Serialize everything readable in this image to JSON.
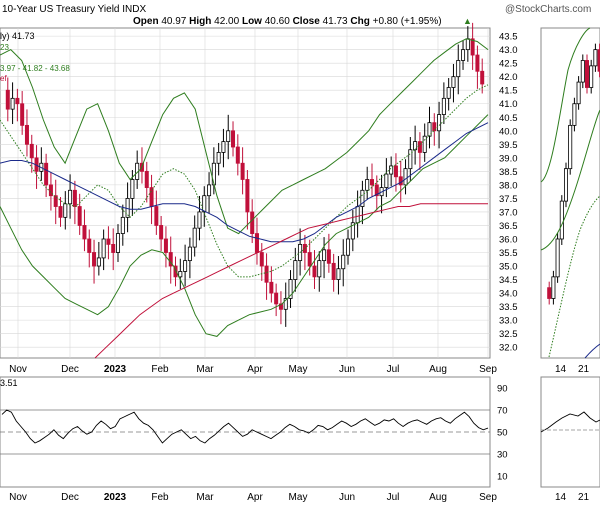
{
  "header": {
    "title": "10-Year US Treasury Yield",
    "exchange": "INDX",
    "watermark": "@StockCharts.com",
    "ohlc": {
      "open_label": "Open",
      "open": "40.97",
      "high_label": "High",
      "high": "42.00",
      "low_label": "Low",
      "low": "40.60",
      "close_label": "Close",
      "close": "41.73",
      "chg_label": "Chg",
      "chg": "+0.80 (+1.95%)",
      "chg_arrow": "▲"
    },
    "legend_line1": "ly) 41.73",
    "legend_line2": "23",
    "legend_line3": "3.97 - 41.82 - 43.68",
    "legend_line4": "ef"
  },
  "rsi_panel": {
    "legend": "3.51"
  },
  "colors": {
    "up_candle": "#000000",
    "down_candle": "#c0103a",
    "bollinger": "#2e7d1e",
    "sma50": "#2e7d1e",
    "ema_blue": "#1a2a8a",
    "sma200": "#c0103a",
    "rsi_line": "#000000",
    "grid": "#d8d8d8"
  },
  "chart_data": [
    {
      "type": "candlestick",
      "title": "10-Year US Treasury Yield",
      "x_tick_labels": [
        "Nov",
        "Dec",
        "2023",
        "Feb",
        "Mar",
        "Apr",
        "May",
        "Jun",
        "Jul",
        "Aug",
        "Sep"
      ],
      "y_tick_labels": [
        "32.0",
        "32.5",
        "33.0",
        "33.5",
        "34.0",
        "34.5",
        "35.0",
        "35.5",
        "36.0",
        "36.5",
        "37.0",
        "37.5",
        "38.0",
        "38.5",
        "39.0",
        "39.5",
        "40.0",
        "40.5",
        "41.0",
        "41.5",
        "42.0",
        "42.5",
        "43.0",
        "43.5"
      ],
      "ylim": [
        31.6,
        43.8
      ],
      "grid": true,
      "series": [
        {
          "name": "price",
          "values": [
            41.5,
            40.8,
            41.2,
            41.0,
            40.2,
            39.5,
            39.0,
            38.5,
            38.8,
            38.0,
            37.6,
            37.2,
            36.8,
            37.3,
            37.8,
            37.2,
            36.5,
            36.0,
            35.5,
            35.0,
            35.3,
            36.0,
            35.8,
            35.5,
            36.2,
            36.8,
            37.5,
            38.2,
            38.8,
            38.5,
            37.9,
            37.2,
            36.5,
            36.0,
            35.5,
            35.0,
            34.6,
            34.8,
            35.2,
            35.7,
            36.4,
            37.0,
            37.6,
            38.0,
            38.8,
            39.2,
            39.6,
            40.0,
            39.4,
            38.8,
            38.2,
            37.0,
            36.2,
            35.5,
            35.0,
            34.4,
            34.0,
            33.6,
            33.4,
            33.8,
            34.5,
            35.2,
            35.8,
            35.5,
            35.0,
            34.6,
            35.2,
            35.6,
            35.1,
            34.5,
            34.9,
            35.4,
            36.0,
            36.6,
            37.2,
            37.8,
            38.2,
            38.0,
            37.6,
            37.9,
            38.4,
            38.7,
            38.3,
            38.0,
            38.6,
            39.3,
            39.6,
            39.2,
            39.8,
            40.3,
            40.0,
            40.6,
            41.2,
            41.6,
            42.0,
            42.6,
            43.0,
            43.4,
            42.8,
            42.2,
            41.73
          ]
        },
        {
          "name": "bb_upper",
          "values": [
            42.8,
            43.0,
            42.6,
            41.6,
            40.4,
            39.4,
            38.8,
            39.8,
            40.8,
            41.0,
            40.0,
            38.8,
            38.2,
            38.6,
            39.6,
            40.6,
            41.2,
            41.4,
            40.8,
            39.2,
            37.6,
            36.4,
            36.2,
            36.6,
            37.0,
            37.4,
            37.8,
            38.0,
            38.2,
            38.4,
            38.6,
            38.9,
            39.2,
            39.6,
            40.0,
            40.6,
            41.0,
            41.4,
            41.8,
            42.2,
            42.6,
            42.9,
            43.2,
            43.4,
            43.3,
            43.0
          ]
        },
        {
          "name": "bb_lower",
          "values": [
            37.2,
            36.4,
            35.6,
            35.0,
            34.6,
            34.2,
            33.8,
            33.6,
            33.4,
            33.2,
            33.5,
            34.2,
            35.0,
            35.4,
            35.6,
            35.5,
            35.0,
            34.2,
            33.2,
            32.5,
            32.4,
            32.8,
            33.0,
            33.2,
            33.3,
            33.4,
            33.6,
            34.0,
            34.6,
            35.2,
            35.8,
            36.2,
            36.4,
            36.6,
            36.8,
            37.2,
            37.4,
            37.8,
            38.2,
            38.6,
            38.8,
            39.0,
            39.4,
            39.8,
            40.2,
            40.6
          ]
        },
        {
          "name": "sma_green_dotted",
          "values": [
            40.4,
            39.8,
            39.2,
            38.6,
            38.0,
            37.6,
            37.3,
            37.2,
            37.6,
            38.0,
            37.8,
            37.2,
            36.8,
            37.2,
            37.8,
            38.4,
            38.6,
            38.4,
            37.8,
            36.8,
            35.8,
            35.0,
            34.6,
            34.6,
            34.7,
            34.8,
            35.0,
            35.3,
            35.6,
            36.0,
            36.4,
            36.8,
            37.2,
            37.5,
            37.8,
            38.2,
            38.6,
            38.9,
            39.2,
            39.6,
            40.0,
            40.4,
            40.8,
            41.2,
            41.5,
            41.7
          ]
        },
        {
          "name": "ema_blue",
          "values": [
            38.8,
            38.9,
            38.9,
            38.8,
            38.6,
            38.4,
            38.2,
            38.0,
            37.8,
            37.6,
            37.4,
            37.2,
            37.1,
            37.1,
            37.2,
            37.3,
            37.3,
            37.3,
            37.2,
            37.0,
            36.8,
            36.5,
            36.3,
            36.1,
            36.0,
            35.9,
            35.9,
            35.9,
            36.0,
            36.2,
            36.5,
            36.8,
            37.0,
            37.2,
            37.5,
            37.7,
            37.9,
            38.1,
            38.4,
            38.7,
            39.0,
            39.3,
            39.6,
            39.9,
            40.1,
            40.3
          ]
        },
        {
          "name": "sma200_red",
          "values": [
            31.6,
            32.0,
            32.4,
            32.8,
            33.2,
            33.5,
            33.8,
            34.0,
            34.2,
            34.4,
            34.6,
            34.8,
            35.0,
            35.2,
            35.4,
            35.6,
            35.8,
            36.0,
            36.2,
            36.4,
            36.5,
            36.6,
            36.7,
            36.8,
            36.9,
            37.0,
            37.1,
            37.2,
            37.2,
            37.3,
            37.3,
            37.3,
            37.3,
            37.3,
            37.3,
            37.3
          ]
        }
      ]
    },
    {
      "type": "line",
      "title": "RSI",
      "y_tick_labels": [
        "90",
        "70",
        "50",
        "30",
        "10"
      ],
      "ylim": [
        0,
        100
      ],
      "reference_lines": [
        70,
        50,
        30
      ],
      "series": [
        {
          "name": "rsi",
          "values": [
            66,
            70,
            68,
            60,
            55,
            50,
            44,
            40,
            42,
            45,
            48,
            52,
            47,
            44,
            49,
            53,
            55,
            51,
            48,
            50,
            56,
            60,
            57,
            53,
            55,
            62,
            64,
            66,
            68,
            62,
            58,
            56,
            52,
            46,
            40,
            44,
            48,
            50,
            52,
            48,
            44,
            46,
            42,
            40,
            44,
            47,
            51,
            55,
            58,
            54,
            50,
            46,
            48,
            52,
            50,
            48,
            46,
            44,
            47,
            50,
            54,
            57,
            55,
            52,
            51,
            49,
            52,
            56,
            55,
            52,
            54,
            57,
            60,
            58,
            55,
            57,
            60,
            62,
            59,
            56,
            58,
            61,
            60,
            62,
            58,
            55,
            58,
            60,
            61,
            59,
            57,
            60,
            62,
            63,
            60,
            58,
            62,
            65,
            68,
            64,
            58,
            54,
            52,
            53.5
          ]
        }
      ]
    }
  ],
  "right_panel": {
    "x_tick_labels": [
      "14",
      "21"
    ]
  }
}
